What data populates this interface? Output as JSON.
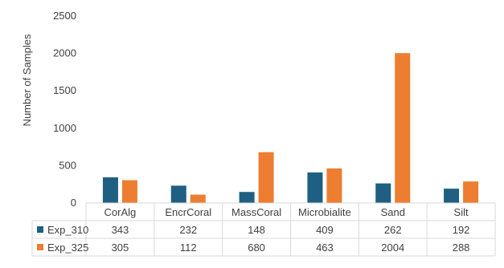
{
  "chart_data": {
    "type": "bar",
    "title": "",
    "xlabel": "",
    "ylabel": "Number of Samples",
    "ylim": [
      0,
      2500
    ],
    "yticks": [
      0,
      500,
      1000,
      1500,
      2000,
      2500
    ],
    "grid": false,
    "legend": "data-table-left",
    "categories": [
      "CorAlg",
      "EncrCoral",
      "MassCoral",
      "Microbialite",
      "Sand",
      "Silt"
    ],
    "series": [
      {
        "name": "Exp_310",
        "color": "#1f5f82",
        "values": [
          343,
          232,
          148,
          409,
          262,
          192
        ]
      },
      {
        "name": "Exp_325",
        "color": "#ed7d31",
        "values": [
          305,
          112,
          680,
          463,
          2004,
          288
        ]
      }
    ]
  }
}
